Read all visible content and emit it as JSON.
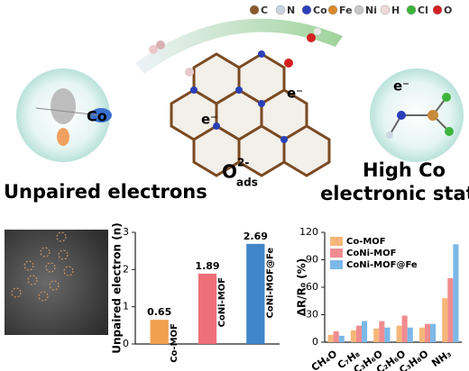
{
  "legend": [
    {
      "name": "C",
      "color": "#8a5a2b"
    },
    {
      "name": "N",
      "color": "#c9d3e0"
    },
    {
      "name": "Co",
      "color": "#2b3fb8"
    },
    {
      "name": "Fe",
      "color": "#d9892a"
    },
    {
      "name": "Ni",
      "color": "#c8c8c8"
    },
    {
      "name": "H",
      "color": "#eed9d9"
    },
    {
      "name": "Cl",
      "color": "#3cb43c"
    },
    {
      "name": "O",
      "color": "#d42020"
    }
  ],
  "labels": {
    "co": "Co",
    "electron": "e⁻",
    "oxygen": "O",
    "oxygen_charge": "2-",
    "oxygen_sub": "ads",
    "left_caption": "Unpaired  electrons",
    "right_caption_1": "High Co",
    "right_caption_2": "electronic state"
  },
  "chart_data": [
    {
      "type": "bar",
      "categories": [
        "Co-MOF",
        "CoNi-MOF",
        "CoNi-MOF@Fe"
      ],
      "values": [
        0.65,
        1.89,
        2.69
      ],
      "colors": [
        "#f0a050",
        "#ee6f78",
        "#3f86c8"
      ],
      "y_label": "Unpaired electron (n)",
      "ylim": [
        0,
        3
      ],
      "yticks": [
        0,
        1,
        2,
        3
      ]
    },
    {
      "type": "bar",
      "categories": [
        "CH₄O",
        "C₇H₈",
        "C₃H₆O",
        "C₂H₆O",
        "C₃H₈O",
        "NH₃"
      ],
      "y_label": "ΔR/R₀ (%)",
      "ylim": [
        0,
        120
      ],
      "yticks": [
        0,
        30,
        60,
        90,
        120
      ],
      "legend": "upper left",
      "series": [
        {
          "name": "Co-MOF",
          "color": "#f6b679",
          "values": [
            8,
            13,
            15,
            18,
            16,
            48
          ]
        },
        {
          "name": "CoNi-MOF",
          "color": "#f08c90",
          "values": [
            12,
            18,
            23,
            29,
            20,
            70
          ]
        },
        {
          "name": "CoNi-MOF@Fe",
          "color": "#7cb8e8",
          "values": [
            7,
            23,
            16,
            16,
            20,
            107
          ]
        }
      ]
    }
  ]
}
